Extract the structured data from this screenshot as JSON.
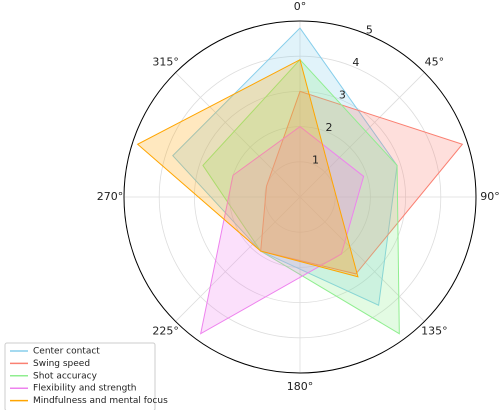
{
  "chart_data": {
    "type": "radar",
    "categories": [
      null,
      null,
      null,
      null,
      null
    ],
    "ylim": [
      0,
      5
    ],
    "yticks": [
      1,
      2,
      3,
      4,
      5
    ],
    "xticks": [
      {
        "value": 0,
        "label": "0°"
      },
      {
        "value": 45,
        "label": "45°"
      },
      {
        "value": 90,
        "label": "90°"
      },
      {
        "value": 135,
        "label": "135°"
      },
      {
        "value": 180,
        "label": "180°"
      },
      {
        "value": 225,
        "label": "225°"
      },
      {
        "value": 270,
        "label": "270°"
      },
      {
        "value": 315,
        "label": "315°"
      }
    ],
    "grid": true,
    "legend": "lower left",
    "series": [
      {
        "name": "Center contact",
        "color": "#87ceeb",
        "values": [
          4.8,
          2.9,
          3.8,
          1.9,
          3.8
        ]
      },
      {
        "name": "Swing speed",
        "color": "#fa8072",
        "values": [
          3.0,
          4.85,
          2.7,
          1.9,
          1.0
        ]
      },
      {
        "name": "Shot accuracy",
        "color": "#90ee90",
        "values": [
          3.9,
          2.9,
          4.8,
          1.9,
          2.9
        ]
      },
      {
        "name": "Flexibility and strength",
        "color": "#ee82ee",
        "values": [
          2.0,
          1.9,
          2.0,
          4.8,
          2.0
        ]
      },
      {
        "name": "Mindfulness and mental focus",
        "color": "#ffa500",
        "values": [
          3.9,
          1.0,
          2.8,
          1.9,
          4.85
        ]
      }
    ]
  }
}
